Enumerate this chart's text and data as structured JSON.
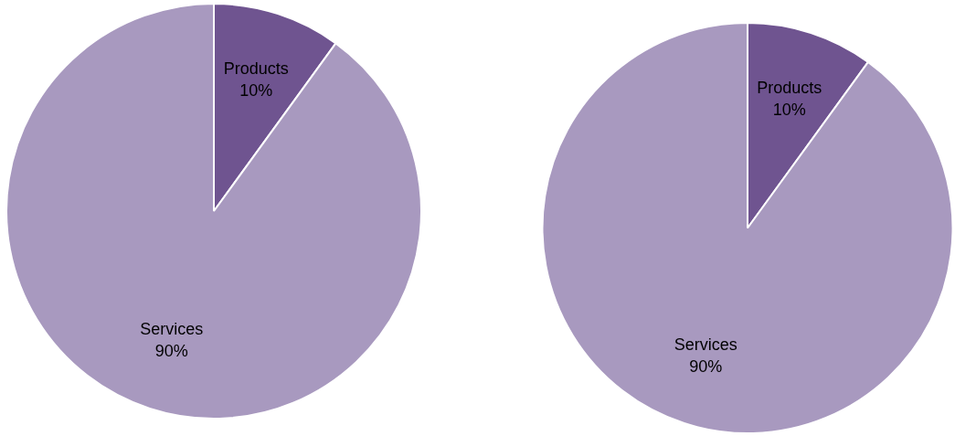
{
  "chart_data": [
    {
      "type": "pie",
      "categories": [
        "Products",
        "Services"
      ],
      "values": [
        10,
        90
      ],
      "colors": [
        "#6f5490",
        "#a899bf"
      ],
      "value_labels": [
        "10%",
        "90%"
      ]
    },
    {
      "type": "pie",
      "categories": [
        "Products",
        "Services"
      ],
      "values": [
        10,
        90
      ],
      "colors": [
        "#6f5490",
        "#a899bf"
      ],
      "value_labels": [
        "10%",
        "90%"
      ]
    }
  ]
}
